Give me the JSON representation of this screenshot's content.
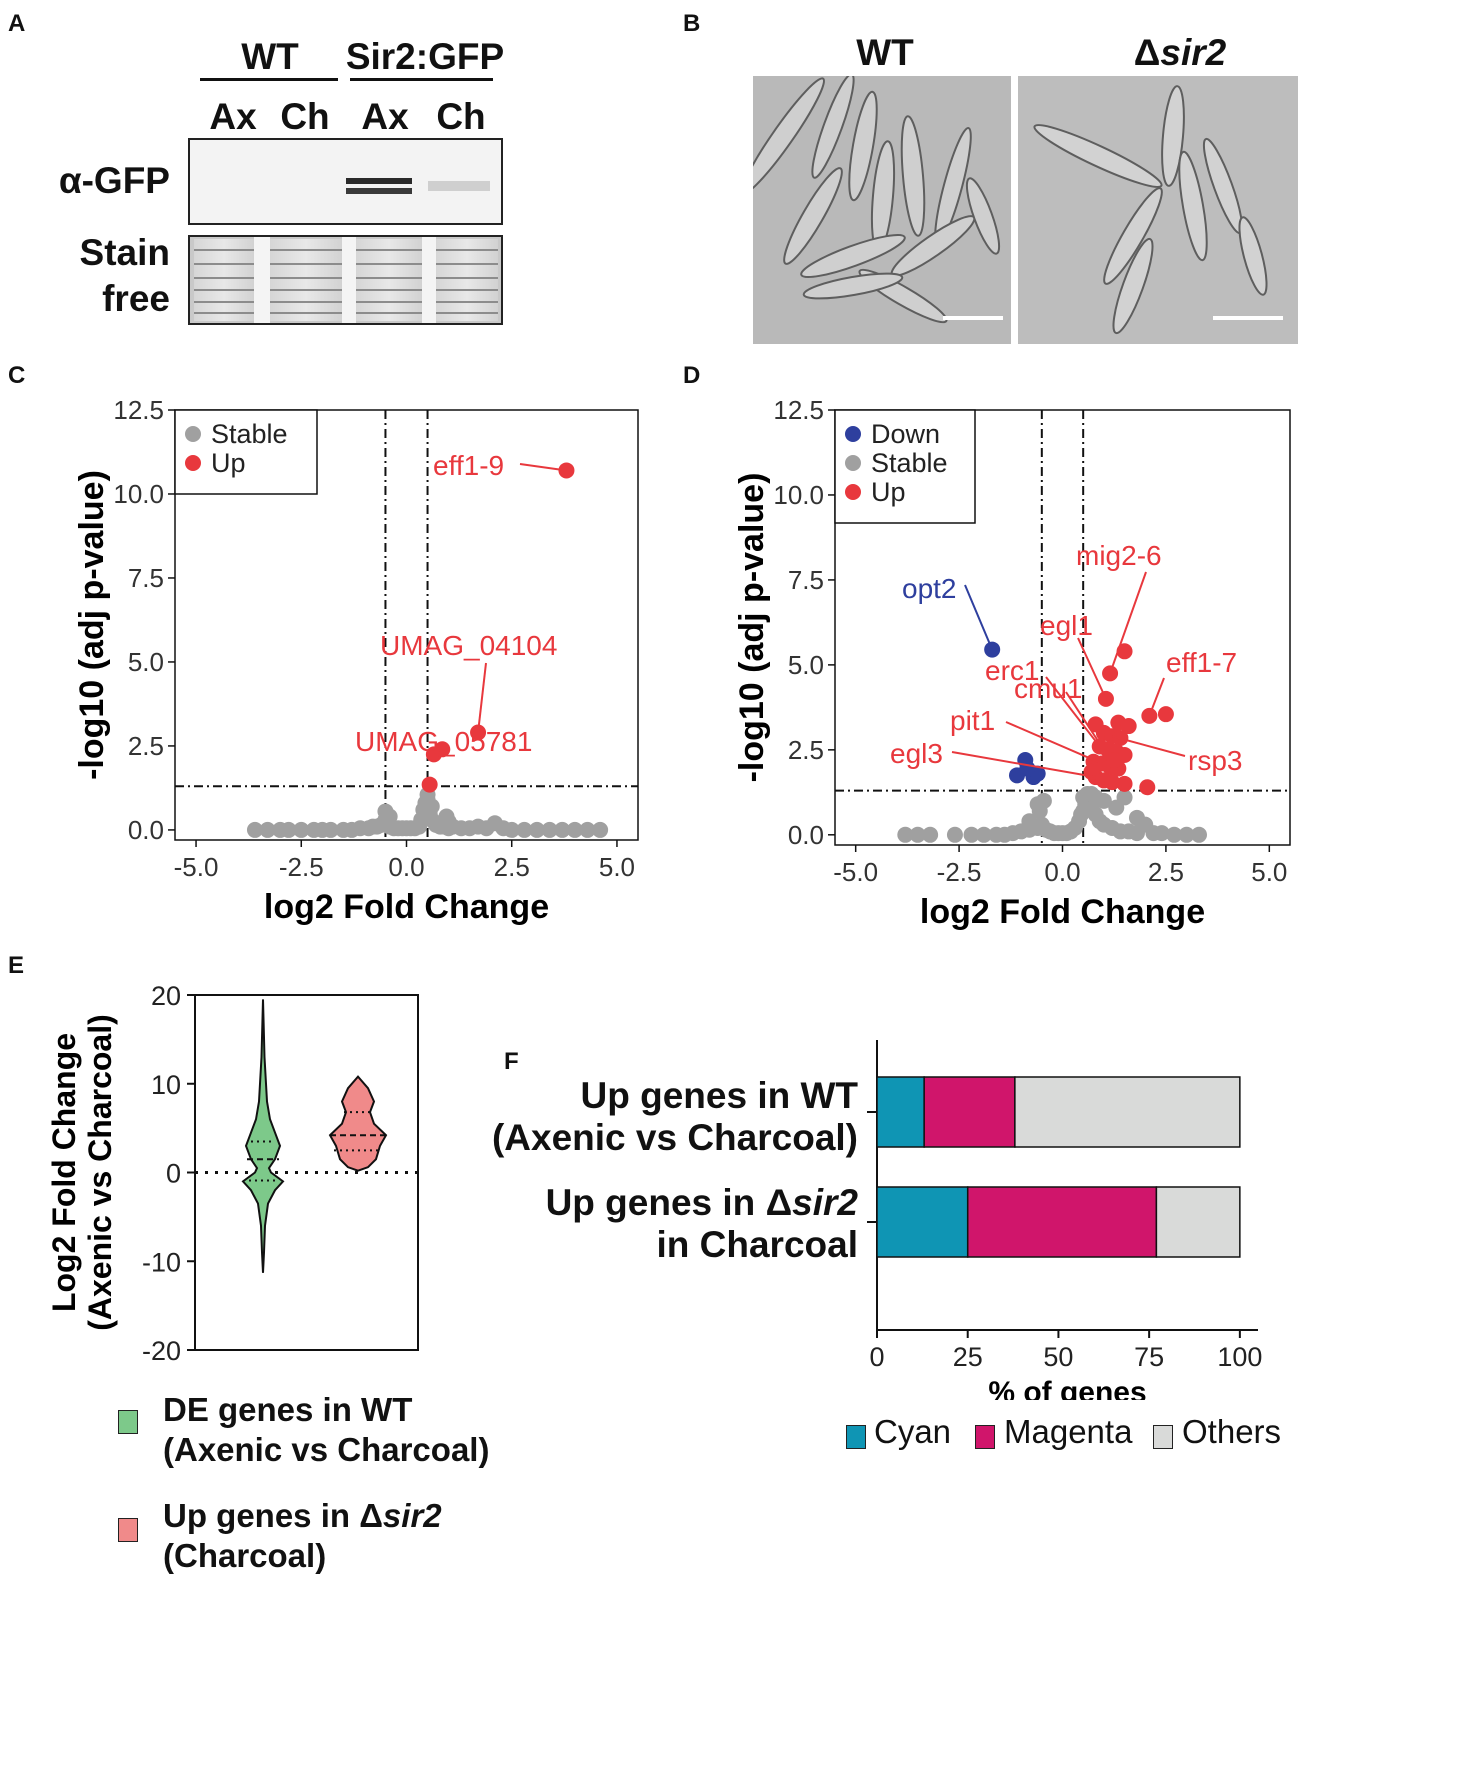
{
  "panels": {
    "a": "A",
    "b": "B",
    "c": "C",
    "d": "D",
    "e": "E",
    "f": "F"
  },
  "blot": {
    "group_wt": "WT",
    "group_sir2": "Sir2:GFP",
    "lanes": [
      "Ax",
      "Ch",
      "Ax",
      "Ch"
    ],
    "row1": "α-GFP",
    "row2_line1": "Stain",
    "row2_line2": "free"
  },
  "micro": {
    "wt_label": "WT",
    "mutant_label_prefix": "Δ",
    "mutant_label_gene": "sir2"
  },
  "chart_data": [
    {
      "id": "C",
      "type": "scatter",
      "xlabel": "log2 Fold Change",
      "ylabel": "-log10 (adj p-value)",
      "xlim": [
        -5.5,
        5.5
      ],
      "ylim": [
        -0.3,
        12.5
      ],
      "xticks": [
        -5.0,
        -2.5,
        0.0,
        2.5,
        5.0
      ],
      "xtick_labels": [
        "-5.0",
        "-2.5",
        "0.0",
        "2.5",
        "5.0"
      ],
      "yticks": [
        0.0,
        2.5,
        5.0,
        7.5,
        10.0,
        12.5
      ],
      "ytick_labels": [
        "0.0",
        "2.5",
        "5.0",
        "7.5",
        "10.0",
        "12.5"
      ],
      "vlines": [
        -0.5,
        0.5
      ],
      "hline": 1.3,
      "legend": [
        {
          "label": "Stable",
          "color": "#a0a0a0"
        },
        {
          "label": "Up",
          "color": "#e8383d"
        }
      ],
      "series": [
        {
          "name": "Stable",
          "color": "#a0a0a0",
          "x": [
            -3.6,
            -3.3,
            -3.0,
            -2.8,
            -2.5,
            -2.2,
            -2.0,
            -1.8,
            -1.5,
            -1.3,
            -1.1,
            -0.9,
            -0.8,
            -0.7,
            -0.6,
            -0.5,
            -0.45,
            -0.4,
            -0.3,
            -0.2,
            -0.1,
            0.0,
            0.1,
            0.2,
            0.3,
            0.35,
            0.4,
            0.45,
            0.5,
            0.55,
            0.6,
            0.7,
            0.8,
            0.9,
            1.0,
            1.1,
            1.3,
            1.5,
            1.7,
            1.9,
            2.1,
            2.3,
            2.5,
            2.8,
            3.1,
            3.4,
            3.7,
            4.0,
            4.3,
            4.6,
            -0.5,
            0.5,
            0.55,
            0.45,
            1.0,
            0.95,
            -0.4,
            0.6
          ],
          "y": [
            0,
            0,
            0,
            0,
            0,
            0,
            0,
            0,
            0,
            0,
            0.05,
            0.05,
            0.1,
            0.1,
            0.15,
            0.3,
            0.2,
            0.1,
            0.05,
            0.05,
            0.05,
            0.05,
            0.05,
            0.05,
            0.1,
            0.3,
            0.6,
            0.8,
            0.9,
            0.5,
            0.3,
            0.15,
            0.1,
            0.1,
            0.05,
            0.1,
            0.05,
            0.05,
            0.1,
            0.05,
            0.2,
            0.05,
            0,
            0,
            0,
            0,
            0,
            0,
            0,
            0,
            0.55,
            1.05,
            0.7,
            0.4,
            0.25,
            0.4,
            0.4,
            0.7
          ]
        },
        {
          "name": "Up",
          "color": "#e8383d",
          "x": [
            3.8,
            1.7,
            0.65,
            0.85,
            0.55
          ],
          "y": [
            10.7,
            2.9,
            2.25,
            2.4,
            1.35
          ]
        }
      ],
      "annotations": [
        {
          "text": "eff1-9",
          "x": 3.8,
          "y": 10.7
        },
        {
          "text": "UMAG_04104",
          "x": 1.7,
          "y": 2.9
        },
        {
          "text": "UMAG_05781",
          "x": 0.85,
          "y": 2.4
        }
      ]
    },
    {
      "id": "D",
      "type": "scatter",
      "xlabel": "log2 Fold Change",
      "ylabel": "-log10 (adj p-value)",
      "xlim": [
        -5.5,
        5.5
      ],
      "ylim": [
        -0.3,
        12.5
      ],
      "xticks": [
        -5.0,
        -2.5,
        0.0,
        2.5,
        5.0
      ],
      "xtick_labels": [
        "-5.0",
        "-2.5",
        "0.0",
        "2.5",
        "5.0"
      ],
      "yticks": [
        0.0,
        2.5,
        5.0,
        7.5,
        10.0,
        12.5
      ],
      "ytick_labels": [
        "0.0",
        "2.5",
        "5.0",
        "7.5",
        "10.0",
        "12.5"
      ],
      "vlines": [
        -0.5,
        0.5
      ],
      "hline": 1.3,
      "legend": [
        {
          "label": "Down",
          "color": "#2e3f9e"
        },
        {
          "label": "Stable",
          "color": "#a0a0a0"
        },
        {
          "label": "Up",
          "color": "#e8383d"
        }
      ],
      "series": [
        {
          "name": "Stable",
          "color": "#a0a0a0",
          "x": [
            -3.8,
            -3.5,
            -3.2,
            -2.6,
            -2.2,
            -1.9,
            -1.6,
            -1.4,
            -1.2,
            -1.0,
            -0.8,
            -0.6,
            -0.5,
            -0.4,
            -0.3,
            -0.2,
            -0.1,
            0.0,
            0.1,
            0.2,
            0.3,
            0.4,
            0.5,
            0.6,
            0.7,
            0.8,
            0.9,
            1.0,
            1.2,
            1.4,
            1.6,
            1.8,
            2.0,
            2.2,
            2.4,
            2.7,
            3.0,
            3.3,
            0.5,
            0.55,
            0.6,
            0.45,
            -0.55,
            -0.45,
            1.0,
            1.3,
            1.5,
            1.8,
            0.8,
            0.7,
            -0.8,
            -0.6
          ],
          "y": [
            0,
            0,
            0,
            0,
            0,
            0,
            0,
            0,
            0.05,
            0.1,
            0.15,
            0.2,
            0.3,
            0.15,
            0.1,
            0.05,
            0.05,
            0.05,
            0.05,
            0.1,
            0.2,
            0.4,
            0.7,
            0.9,
            0.8,
            0.6,
            0.4,
            0.3,
            0.2,
            0.1,
            0.1,
            0.05,
            0.3,
            0.05,
            0.05,
            0,
            0,
            0,
            1.1,
            0.9,
            1.2,
            0.6,
            0.7,
            1.0,
            1.0,
            0.8,
            1.1,
            0.5,
            1.1,
            1.2,
            0.4,
            0.9
          ]
        },
        {
          "name": "Down",
          "color": "#2e3f9e",
          "x": [
            -1.7,
            -0.9,
            -1.1,
            -0.7,
            -0.6,
            -0.85
          ],
          "y": [
            5.45,
            2.2,
            1.75,
            1.7,
            1.8,
            1.95
          ]
        },
        {
          "name": "Up",
          "color": "#e8383d",
          "x": [
            1.5,
            1.15,
            1.05,
            2.5,
            2.1,
            1.35,
            0.8,
            1.0,
            1.2,
            1.4,
            0.9,
            1.1,
            1.3,
            1.5,
            0.75,
            0.95,
            1.15,
            1.35,
            0.8,
            1.0,
            1.2,
            1.5,
            2.05,
            1.6,
            0.7,
            1.25
          ],
          "y": [
            5.4,
            4.75,
            4.0,
            3.55,
            3.5,
            3.3,
            3.25,
            3.0,
            2.9,
            2.85,
            2.6,
            2.5,
            2.45,
            2.35,
            2.15,
            2.1,
            2.0,
            1.95,
            1.7,
            1.6,
            1.55,
            1.5,
            1.4,
            3.2,
            1.85,
            2.2
          ]
        }
      ],
      "annotations": [
        {
          "text": "opt2",
          "color": "#2e3f9e",
          "x": -1.7,
          "y": 5.45
        },
        {
          "text": "mig2-6",
          "x": 1.15,
          "y": 4.75
        },
        {
          "text": "egl1",
          "x": 1.05,
          "y": 4.0
        },
        {
          "text": "erc1",
          "x": 0.9,
          "y": 2.6
        },
        {
          "text": "cmu1",
          "x": 1.0,
          "y": 2.5
        },
        {
          "text": "eff1-7",
          "x": 2.1,
          "y": 3.5
        },
        {
          "text": "pit1",
          "x": 0.95,
          "y": 2.1
        },
        {
          "text": "egl3",
          "x": 0.8,
          "y": 1.7
        },
        {
          "text": "rsp3",
          "x": 1.2,
          "y": 2.9
        }
      ]
    },
    {
      "id": "E",
      "type": "violin",
      "ylabel_line1": "Log2 Fold Change",
      "ylabel_line2": "(Axenic vs Charcoal)",
      "ylim": [
        -20,
        20
      ],
      "yticks": [
        -20,
        -10,
        0,
        10,
        20
      ],
      "ytick_labels": [
        "-20",
        "-10",
        "0",
        "10",
        "20"
      ],
      "series": [
        {
          "name": "DE genes in WT (Axenic vs Charcoal)",
          "color": "#7dc98a",
          "range": [
            -11.3,
            19.5
          ],
          "median": 1.5,
          "q1": -0.9,
          "q3": 3.5
        },
        {
          "name": "Up genes in Δsir2 (Charcoal)",
          "color": "#f08a8a",
          "range": [
            0.2,
            10.8
          ],
          "median": 4.2,
          "q1": 2.5,
          "q3": 6.8
        }
      ],
      "legend": [
        {
          "line1": "DE genes in WT",
          "line2": "(Axenic vs Charcoal)",
          "color": "#7dc98a"
        },
        {
          "line1_prefix": "Up genes in ",
          "line1_delta": "Δ",
          "line1_gene": "sir2",
          "line2": "(Charcoal)",
          "color": "#f08a8a"
        }
      ]
    },
    {
      "id": "F",
      "type": "bar",
      "orientation": "horizontal-stacked",
      "xlabel": "% of genes",
      "xlim": [
        0,
        105
      ],
      "xticks": [
        0,
        25,
        50,
        75,
        100
      ],
      "xtick_labels": [
        "0",
        "25",
        "50",
        "75",
        "100"
      ],
      "categories": [
        {
          "line1": "Up genes in WT",
          "line2": "(Axenic vs Charcoal)"
        },
        {
          "line1_prefix": "Up genes in ",
          "line1_delta": "Δ",
          "line1_gene": "sir2",
          "line2": "in Charcoal"
        }
      ],
      "series": [
        {
          "name": "Cyan",
          "color": "#0f95b4",
          "values": [
            13,
            25
          ]
        },
        {
          "name": "Magenta",
          "color": "#d0156b",
          "values": [
            25,
            52
          ]
        },
        {
          "name": "Others",
          "color": "#d9dad9",
          "values": [
            62,
            23
          ]
        }
      ]
    }
  ]
}
